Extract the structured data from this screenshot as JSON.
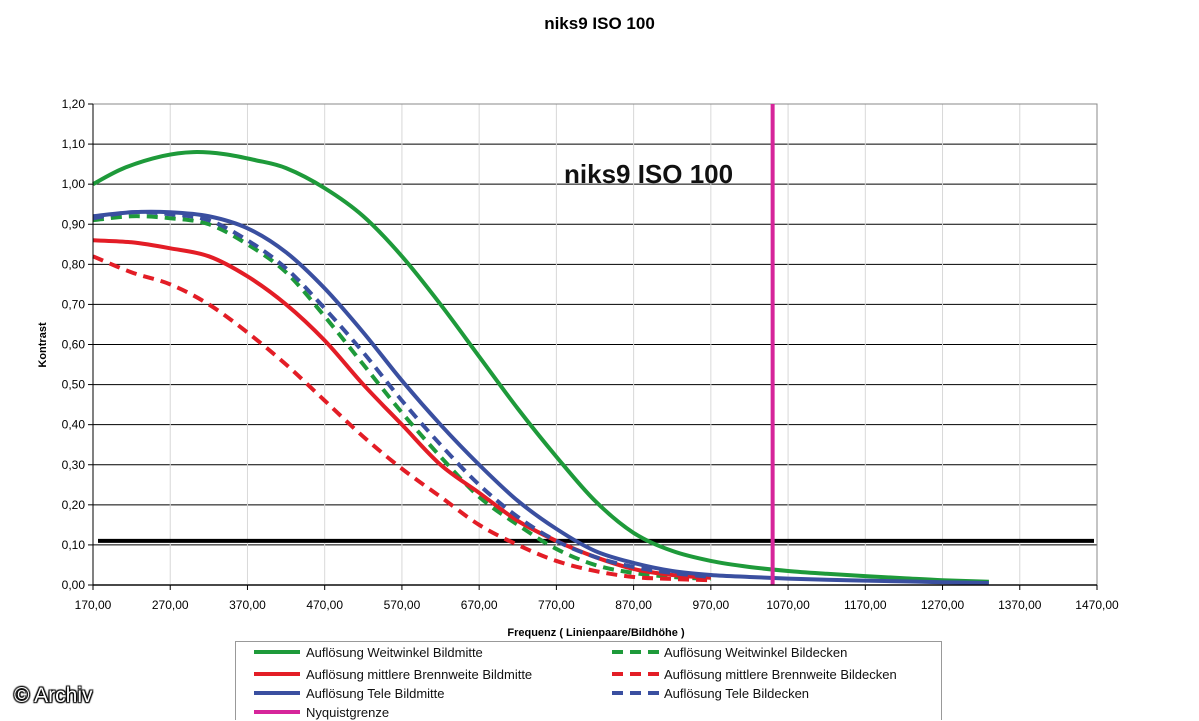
{
  "chart_data": {
    "type": "line",
    "title": "niks9 ISO 100",
    "annotation": "niks9 ISO 100",
    "xlabel": "Frequenz ( Linienpaare/Bildhöhe )",
    "ylabel": "Kontrast",
    "xlim": [
      170,
      1470
    ],
    "ylim": [
      0,
      1.2
    ],
    "x_ticks": [
      "170,00",
      "270,00",
      "370,00",
      "470,00",
      "570,00",
      "670,00",
      "770,00",
      "870,00",
      "970,00",
      "1070,00",
      "1170,00",
      "1270,00",
      "1370,00",
      "1470,00"
    ],
    "y_ticks": [
      "0,00",
      "0,10",
      "0,20",
      "0,30",
      "0,40",
      "0,50",
      "0,60",
      "0,70",
      "0,80",
      "0,90",
      "1,00",
      "1,10",
      "1,20"
    ],
    "grid": "horizontal",
    "reference_line_y": 0.11,
    "series": [
      {
        "name": "Auflösung Weitwinkel Bildmitte",
        "color": "#1e9a3a",
        "style": "solid",
        "x": [
          170,
          210,
          260,
          300,
          340,
          380,
          420,
          470,
          520,
          570,
          620,
          670,
          720,
          770,
          820,
          870,
          920,
          970,
          1020,
          1070,
          1120,
          1170,
          1220,
          1270,
          1330
        ],
        "y": [
          1.0,
          1.04,
          1.07,
          1.08,
          1.075,
          1.06,
          1.04,
          0.99,
          0.92,
          0.82,
          0.7,
          0.57,
          0.44,
          0.32,
          0.21,
          0.13,
          0.085,
          0.06,
          0.045,
          0.035,
          0.028,
          0.022,
          0.017,
          0.012,
          0.008
        ]
      },
      {
        "name": "Auflösung Weitwinkel Bildecken",
        "color": "#1e9a3a",
        "style": "dashed",
        "x": [
          170,
          220,
          270,
          320,
          370,
          420,
          470,
          520,
          570,
          620,
          670,
          720,
          770,
          820,
          870,
          920,
          970
        ],
        "y": [
          0.91,
          0.92,
          0.915,
          0.9,
          0.85,
          0.78,
          0.67,
          0.55,
          0.43,
          0.32,
          0.22,
          0.15,
          0.09,
          0.05,
          0.03,
          0.02,
          0.015
        ]
      },
      {
        "name": "Auflösung mittlere Brennweite Bildmitte",
        "color": "#e31d26",
        "style": "solid",
        "x": [
          170,
          220,
          270,
          320,
          370,
          420,
          470,
          520,
          570,
          620,
          670,
          720,
          770,
          820,
          870,
          920,
          970
        ],
        "y": [
          0.86,
          0.855,
          0.84,
          0.82,
          0.77,
          0.7,
          0.61,
          0.5,
          0.4,
          0.3,
          0.23,
          0.16,
          0.11,
          0.07,
          0.04,
          0.025,
          0.018
        ]
      },
      {
        "name": "Auflösung mittlere Brennweite Bildecken",
        "color": "#e31d26",
        "style": "dashed",
        "x": [
          170,
          220,
          270,
          320,
          370,
          420,
          470,
          520,
          570,
          620,
          670,
          720,
          770,
          820,
          870,
          920,
          970
        ],
        "y": [
          0.82,
          0.78,
          0.75,
          0.7,
          0.63,
          0.55,
          0.46,
          0.37,
          0.29,
          0.22,
          0.15,
          0.1,
          0.06,
          0.035,
          0.02,
          0.015,
          0.012
        ]
      },
      {
        "name": "Auflösung Tele Bildmitte",
        "color": "#3a4fa0",
        "style": "solid",
        "x": [
          170,
          220,
          270,
          320,
          370,
          420,
          470,
          520,
          570,
          620,
          670,
          720,
          770,
          820,
          870,
          920,
          970,
          1020,
          1070,
          1120,
          1170,
          1220,
          1270,
          1330
        ],
        "y": [
          0.92,
          0.93,
          0.93,
          0.92,
          0.89,
          0.83,
          0.74,
          0.63,
          0.51,
          0.4,
          0.3,
          0.21,
          0.14,
          0.085,
          0.055,
          0.035,
          0.025,
          0.02,
          0.016,
          0.013,
          0.011,
          0.009,
          0.007,
          0.005
        ]
      },
      {
        "name": "Auflösung Tele Bildecken",
        "color": "#3a4fa0",
        "style": "dashed",
        "x": [
          170,
          220,
          270,
          320,
          370,
          420,
          470,
          520,
          570,
          620,
          670,
          720,
          770,
          820,
          870,
          920,
          970
        ],
        "y": [
          0.915,
          0.93,
          0.925,
          0.91,
          0.86,
          0.79,
          0.69,
          0.58,
          0.46,
          0.35,
          0.25,
          0.17,
          0.11,
          0.07,
          0.045,
          0.03,
          0.02
        ]
      },
      {
        "name": "Nyquistgrenze",
        "color": "#d6259a",
        "style": "vertical",
        "x": [
          1050,
          1050
        ],
        "y": [
          0,
          1.2
        ]
      }
    ]
  },
  "legend": {
    "items": [
      "Auflösung Weitwinkel Bildmitte",
      "Auflösung Weitwinkel Bildecken",
      "Auflösung mittlere Brennweite Bildmitte",
      "Auflösung mittlere Brennweite Bildecken",
      "Auflösung Tele Bildmitte",
      "Auflösung Tele Bildecken",
      "Nyquistgrenze"
    ]
  },
  "watermark": "© Archiv"
}
